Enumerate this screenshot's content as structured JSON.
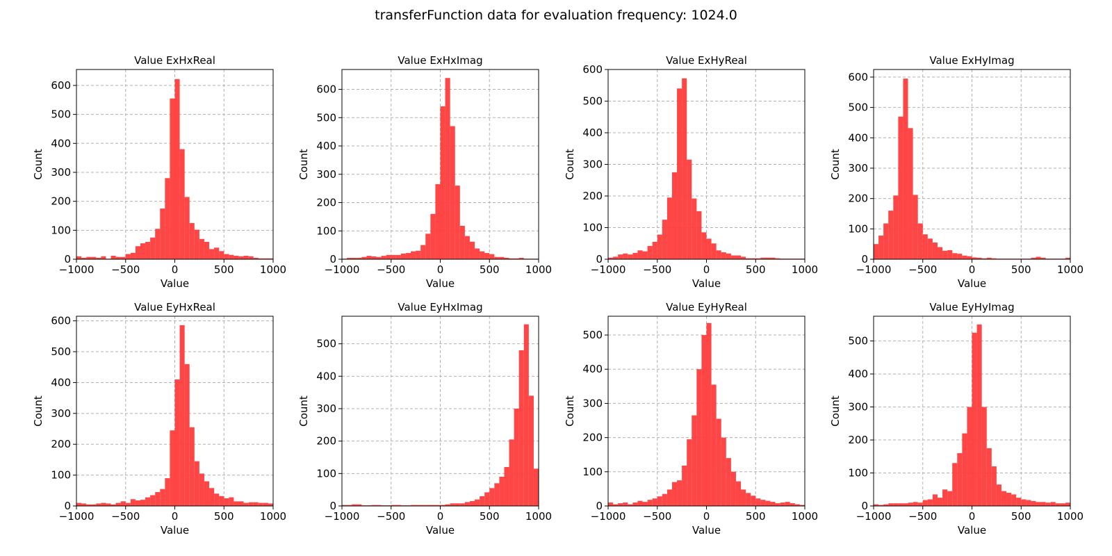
{
  "figure": {
    "title": "transferFunction data for evaluation frequency: 1024.0"
  },
  "style": {
    "bar_color": "#ff3c3c",
    "bar_opacity": 0.95,
    "grid_color": "#b0b0b0",
    "grid_style": "dashed"
  },
  "chart_data": [
    {
      "type": "bar",
      "title": "Value ExHxReal",
      "xlabel": "Value",
      "ylabel": "Count",
      "xlim": [
        -1000,
        1000
      ],
      "ylim": [
        0,
        655
      ],
      "bin_width": 50,
      "grid": true,
      "xticks": [
        -1000,
        -500,
        0,
        500,
        1000
      ],
      "yticks": [
        0,
        100,
        200,
        300,
        400,
        500,
        600
      ],
      "values": [
        10,
        5,
        8,
        8,
        5,
        10,
        2,
        12,
        8,
        8,
        18,
        22,
        45,
        55,
        60,
        75,
        105,
        175,
        280,
        555,
        622,
        380,
        215,
        125,
        102,
        70,
        60,
        35,
        40,
        28,
        18,
        15,
        12,
        10,
        12,
        10,
        5,
        3,
        3,
        3
      ]
    },
    {
      "type": "bar",
      "title": "Value ExHxImag",
      "xlabel": "Value",
      "ylabel": "Count",
      "xlim": [
        -1000,
        1000
      ],
      "ylim": [
        0,
        670
      ],
      "bin_width": 50,
      "grid": true,
      "xticks": [
        -1000,
        -500,
        0,
        500,
        1000
      ],
      "yticks": [
        0,
        100,
        200,
        300,
        400,
        500,
        600
      ],
      "values": [
        2,
        5,
        5,
        5,
        8,
        12,
        10,
        8,
        12,
        15,
        15,
        15,
        20,
        22,
        28,
        30,
        50,
        90,
        160,
        265,
        540,
        640,
        470,
        260,
        118,
        82,
        62,
        38,
        28,
        22,
        18,
        8,
        8,
        5,
        3,
        3,
        5,
        2,
        2,
        2
      ]
    },
    {
      "type": "bar",
      "title": "Value ExHyReal",
      "xlabel": "Value",
      "ylabel": "Count",
      "xlim": [
        -1000,
        1000
      ],
      "ylim": [
        0,
        600
      ],
      "bin_width": 50,
      "grid": true,
      "xticks": [
        -1000,
        -500,
        0,
        500,
        1000
      ],
      "yticks": [
        0,
        100,
        200,
        300,
        400,
        500,
        600
      ],
      "values": [
        5,
        8,
        15,
        18,
        15,
        20,
        28,
        25,
        42,
        55,
        78,
        125,
        195,
        275,
        540,
        572,
        315,
        192,
        152,
        85,
        65,
        50,
        28,
        22,
        18,
        12,
        12,
        8,
        3,
        3,
        3,
        5,
        5,
        5,
        3,
        2,
        2,
        2,
        2,
        2
      ]
    },
    {
      "type": "bar",
      "title": "Value ExHyImag",
      "xlabel": "Value",
      "ylabel": "Count",
      "xlim": [
        -1000,
        1000
      ],
      "ylim": [
        0,
        625
      ],
      "bin_width": 50,
      "grid": true,
      "xticks": [
        -1000,
        -500,
        0,
        500,
        1000
      ],
      "yticks": [
        0,
        100,
        200,
        300,
        400,
        500,
        600
      ],
      "values": [
        50,
        78,
        118,
        160,
        210,
        470,
        595,
        432,
        212,
        118,
        82,
        68,
        55,
        40,
        28,
        30,
        20,
        18,
        12,
        10,
        6,
        5,
        3,
        5,
        3,
        2,
        2,
        2,
        2,
        2,
        2,
        2,
        5,
        8,
        5,
        2,
        2,
        2,
        2,
        5
      ]
    },
    {
      "type": "bar",
      "title": "Value EyHxReal",
      "xlabel": "Value",
      "ylabel": "Count",
      "xlim": [
        -1000,
        1000
      ],
      "ylim": [
        0,
        615
      ],
      "bin_width": 50,
      "grid": true,
      "xticks": [
        -1000,
        -500,
        0,
        500,
        1000
      ],
      "yticks": [
        0,
        100,
        200,
        300,
        400,
        500,
        600
      ],
      "values": [
        10,
        8,
        5,
        5,
        8,
        10,
        8,
        5,
        10,
        15,
        10,
        22,
        18,
        20,
        28,
        35,
        45,
        55,
        90,
        245,
        410,
        586,
        460,
        255,
        145,
        105,
        80,
        58,
        40,
        32,
        25,
        28,
        15,
        15,
        10,
        12,
        12,
        10,
        10,
        8
      ]
    },
    {
      "type": "bar",
      "title": "Value EyHxImag",
      "xlabel": "Value",
      "ylabel": "Count",
      "xlim": [
        -1000,
        1000
      ],
      "ylim": [
        0,
        585
      ],
      "bin_width": 50,
      "grid": true,
      "xticks": [
        -1000,
        -500,
        0,
        500,
        1000
      ],
      "yticks": [
        0,
        100,
        200,
        300,
        400,
        500
      ],
      "scale_note": "",
      "values": [
        3,
        3,
        5,
        5,
        2,
        2,
        3,
        3,
        2,
        2,
        3,
        3,
        2,
        2,
        3,
        3,
        3,
        3,
        3,
        3,
        3,
        5,
        8,
        8,
        8,
        12,
        15,
        20,
        30,
        42,
        55,
        70,
        90,
        120,
        205,
        300,
        480,
        560,
        340,
        115
      ]
    },
    {
      "type": "bar",
      "title": "Value EyHyReal",
      "xlabel": "Value",
      "ylabel": "Count",
      "xlim": [
        -1000,
        1000
      ],
      "ylim": [
        0,
        555
      ],
      "bin_width": 50,
      "grid": true,
      "xticks": [
        -1000,
        -500,
        0,
        500,
        1000
      ],
      "yticks": [
        0,
        100,
        200,
        300,
        400,
        500
      ],
      "values": [
        10,
        5,
        8,
        10,
        5,
        10,
        15,
        12,
        18,
        22,
        28,
        35,
        48,
        70,
        75,
        118,
        195,
        265,
        400,
        500,
        535,
        355,
        255,
        200,
        140,
        100,
        72,
        48,
        38,
        30,
        22,
        18,
        15,
        12,
        8,
        10,
        12,
        8,
        5,
        3
      ]
    },
    {
      "type": "bar",
      "title": "Value EyHyImag",
      "xlabel": "Value",
      "ylabel": "Count",
      "xlim": [
        -1000,
        1000
      ],
      "ylim": [
        0,
        575
      ],
      "bin_width": 50,
      "grid": true,
      "xticks": [
        -1000,
        -500,
        0,
        500,
        1000
      ],
      "yticks": [
        0,
        100,
        200,
        300,
        400,
        500
      ],
      "values": [
        5,
        3,
        5,
        8,
        8,
        8,
        8,
        10,
        12,
        10,
        18,
        20,
        35,
        25,
        50,
        45,
        130,
        160,
        220,
        300,
        525,
        550,
        300,
        175,
        120,
        65,
        45,
        40,
        35,
        25,
        20,
        18,
        15,
        12,
        12,
        10,
        12,
        8,
        8,
        10
      ]
    }
  ]
}
